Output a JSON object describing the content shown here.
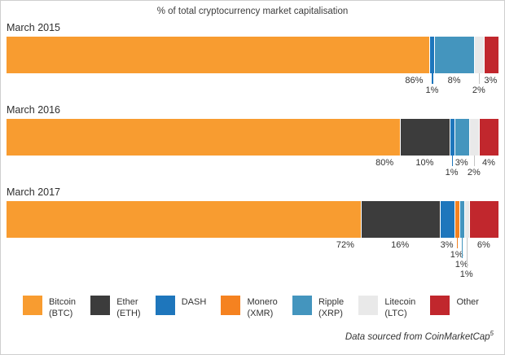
{
  "title": "% of total cryptocurrency market capitalisation",
  "footer": {
    "text": "Data sourced from CoinMarketCap",
    "superscript": "5"
  },
  "colors": {
    "bitcoin": "#F89C30",
    "ether": "#3C3C3C",
    "dash": "#1E76BC",
    "monero": "#F58220",
    "ripple": "#4495BE",
    "litecoin": "#E9E9E9",
    "other": "#C1272D"
  },
  "legend": [
    {
      "key": "bitcoin",
      "lines": [
        "Bitcoin",
        "(BTC)"
      ]
    },
    {
      "key": "ether",
      "lines": [
        "Ether",
        "(ETH)"
      ]
    },
    {
      "key": "dash",
      "lines": [
        "DASH"
      ]
    },
    {
      "key": "monero",
      "lines": [
        "Monero",
        "(XMR)"
      ]
    },
    {
      "key": "ripple",
      "lines": [
        "Ripple",
        "(XRP)"
      ]
    },
    {
      "key": "litecoin",
      "lines": [
        "Litecoin",
        "(LTC)"
      ]
    },
    {
      "key": "other",
      "lines": [
        "Other"
      ]
    }
  ],
  "chart_data": {
    "type": "bar",
    "stacked": true,
    "orientation": "horizontal",
    "title": "% of total cryptocurrency market capitalisation",
    "unit": "%",
    "x_range": [
      0,
      100
    ],
    "series_names": [
      "Bitcoin (BTC)",
      "Ether (ETH)",
      "DASH",
      "Monero (XMR)",
      "Ripple (XRP)",
      "Litecoin (LTC)",
      "Other"
    ],
    "rows": [
      {
        "label": "March 2015",
        "segments": [
          {
            "key": "bitcoin",
            "name": "Bitcoin (BTC)",
            "value": 86,
            "label_level": 0
          },
          {
            "key": "dash",
            "name": "DASH",
            "value": 1,
            "label_level": 1
          },
          {
            "key": "ripple",
            "name": "Ripple (XRP)",
            "value": 8,
            "label_level": 0
          },
          {
            "key": "litecoin",
            "name": "Litecoin (LTC)",
            "value": 2,
            "label_level": 1
          },
          {
            "key": "other",
            "name": "Other",
            "value": 3,
            "label_level": 0
          }
        ]
      },
      {
        "label": "March 2016",
        "segments": [
          {
            "key": "bitcoin",
            "name": "Bitcoin (BTC)",
            "value": 80,
            "label_level": 0
          },
          {
            "key": "ether",
            "name": "Ether (ETH)",
            "value": 10,
            "label_level": 0
          },
          {
            "key": "dash",
            "name": "DASH",
            "value": 1,
            "label_level": 1
          },
          {
            "key": "ripple",
            "name": "Ripple (XRP)",
            "value": 3,
            "label_level": 0
          },
          {
            "key": "litecoin",
            "name": "Litecoin (LTC)",
            "value": 2,
            "label_level": 1
          },
          {
            "key": "other",
            "name": "Other",
            "value": 4,
            "label_level": 0
          }
        ]
      },
      {
        "label": "March 2017",
        "segments": [
          {
            "key": "bitcoin",
            "name": "Bitcoin (BTC)",
            "value": 72,
            "label_level": 0
          },
          {
            "key": "ether",
            "name": "Ether (ETH)",
            "value": 16,
            "label_level": 0
          },
          {
            "key": "dash",
            "name": "DASH",
            "value": 3,
            "label_level": 0
          },
          {
            "key": "monero",
            "name": "Monero (XMR)",
            "value": 1,
            "label_level": 1
          },
          {
            "key": "ripple",
            "name": "Ripple (XRP)",
            "value": 1,
            "label_level": 2
          },
          {
            "key": "litecoin",
            "name": "Litecoin (LTC)",
            "value": 1,
            "label_level": 3
          },
          {
            "key": "other",
            "name": "Other",
            "value": 6,
            "label_level": 0
          }
        ]
      }
    ]
  }
}
